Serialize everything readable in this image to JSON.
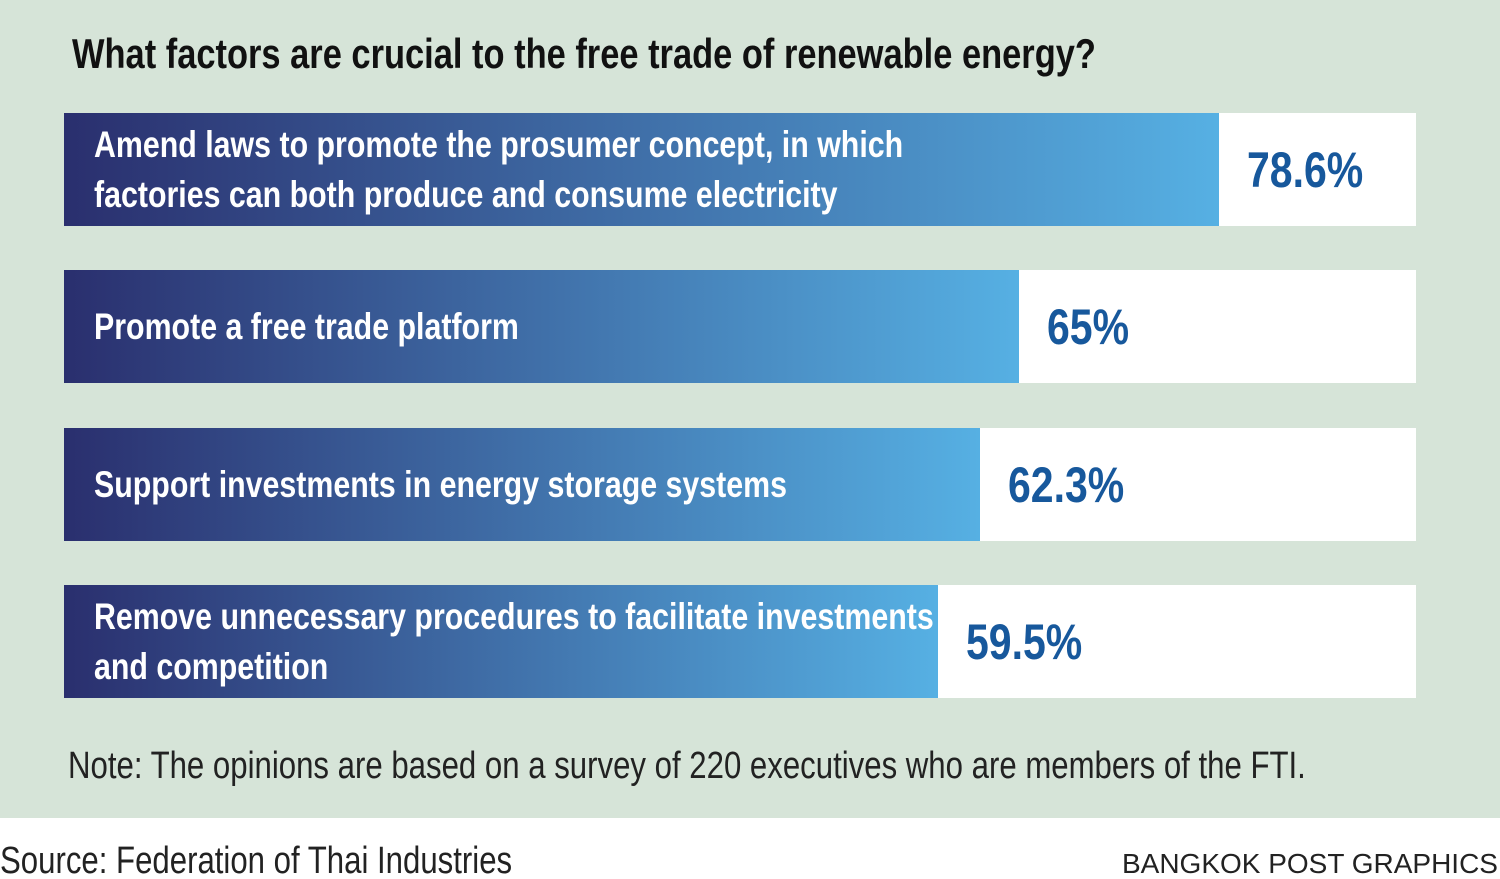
{
  "chart_data": {
    "type": "bar",
    "orientation": "horizontal",
    "title": "What factors are crucial to the free trade of renewable energy?",
    "categories": [
      "Amend laws to promote the prosumer concept, in which factories can both produce and consume electricity",
      "Promote a free trade platform",
      "Support investments in energy storage systems",
      "Remove unnecessary procedures to facilitate investments and competition"
    ],
    "values": [
      78.6,
      65,
      62.3,
      59.5
    ],
    "value_labels": [
      "78.6%",
      "65%",
      "62.3%",
      "59.5%"
    ],
    "xlim": [
      0,
      92
    ],
    "color": [
      "#2a2f6e",
      "#56b0e3"
    ],
    "label_color": "#17589c",
    "note": "Note: The opinions are based on a survey of 220 executives who are members of the FTI.",
    "source": "Source: Federation of Thai Industries",
    "credit": "BANGKOK POST GRAPHICS"
  }
}
